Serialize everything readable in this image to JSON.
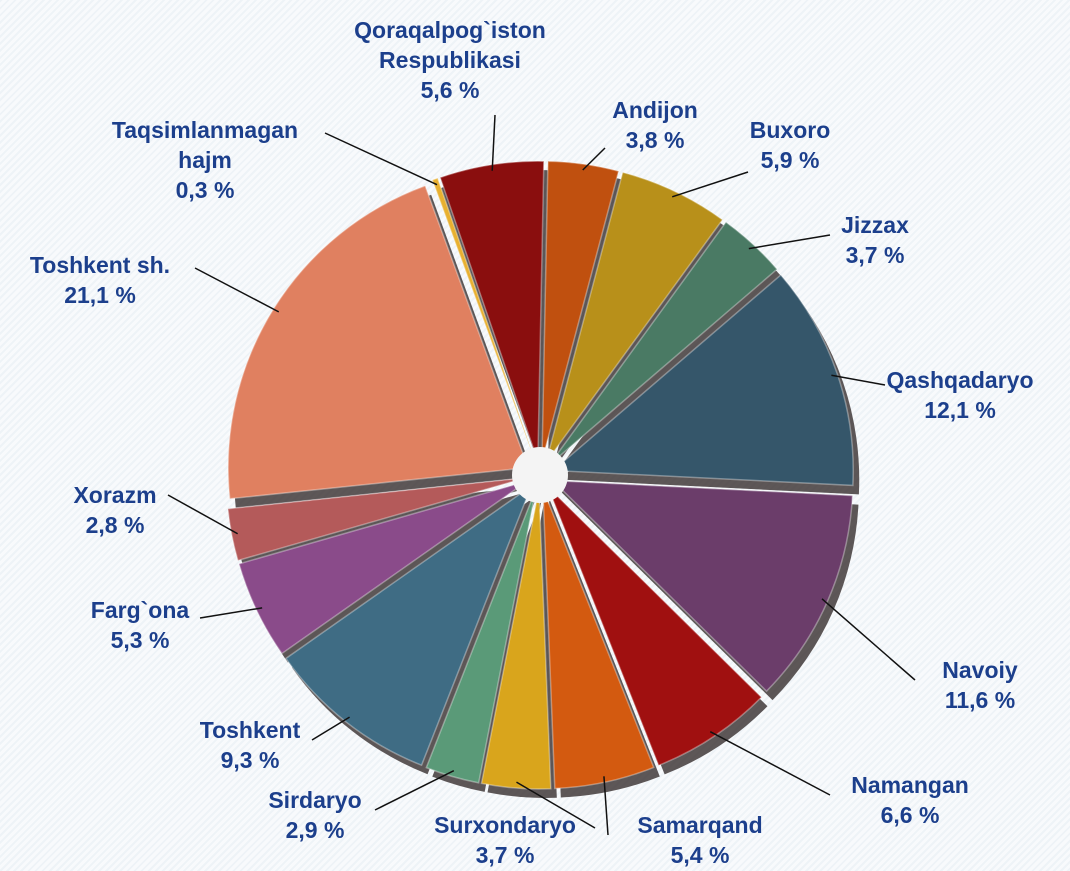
{
  "chart_data": {
    "type": "pie",
    "categories": [
      "Andijon",
      "Buxoro",
      "Jizzax",
      "Qashqadaryo",
      "Navoiy",
      "Namangan",
      "Samarqand",
      "Surxondaryo",
      "Sirdaryo",
      "Toshkent",
      "Farg`ona",
      "Xorazm",
      "Toshkent sh.",
      "Taqsimlanmagan hajm",
      "Qoraqalpog`iston Respublikasi"
    ],
    "values": [
      3.8,
      5.9,
      3.7,
      12.1,
      11.6,
      6.6,
      5.4,
      3.7,
      2.9,
      9.3,
      5.3,
      2.8,
      21.1,
      0.3,
      5.6
    ],
    "value_labels": [
      "3,8 %",
      "5,9 %",
      "3,7 %",
      "12,1 %",
      "11,6 %",
      "6,6 %",
      "5,4 %",
      "3,7 %",
      "2,9 %",
      "9,3 %",
      "5,3 %",
      "2,8 %",
      "21,1 %",
      "0,3 %",
      "5,6 %"
    ],
    "colors": [
      "#c0500f",
      "#b8901a",
      "#4a7a64",
      "#35566a",
      "#6b3d6a",
      "#a01010",
      "#d35a10",
      "#d9a51c",
      "#5a9a78",
      "#3f6c84",
      "#8a4b8a",
      "#b45a5a",
      "#e08060",
      "#e8b030",
      "#8a0e0e"
    ]
  }
}
